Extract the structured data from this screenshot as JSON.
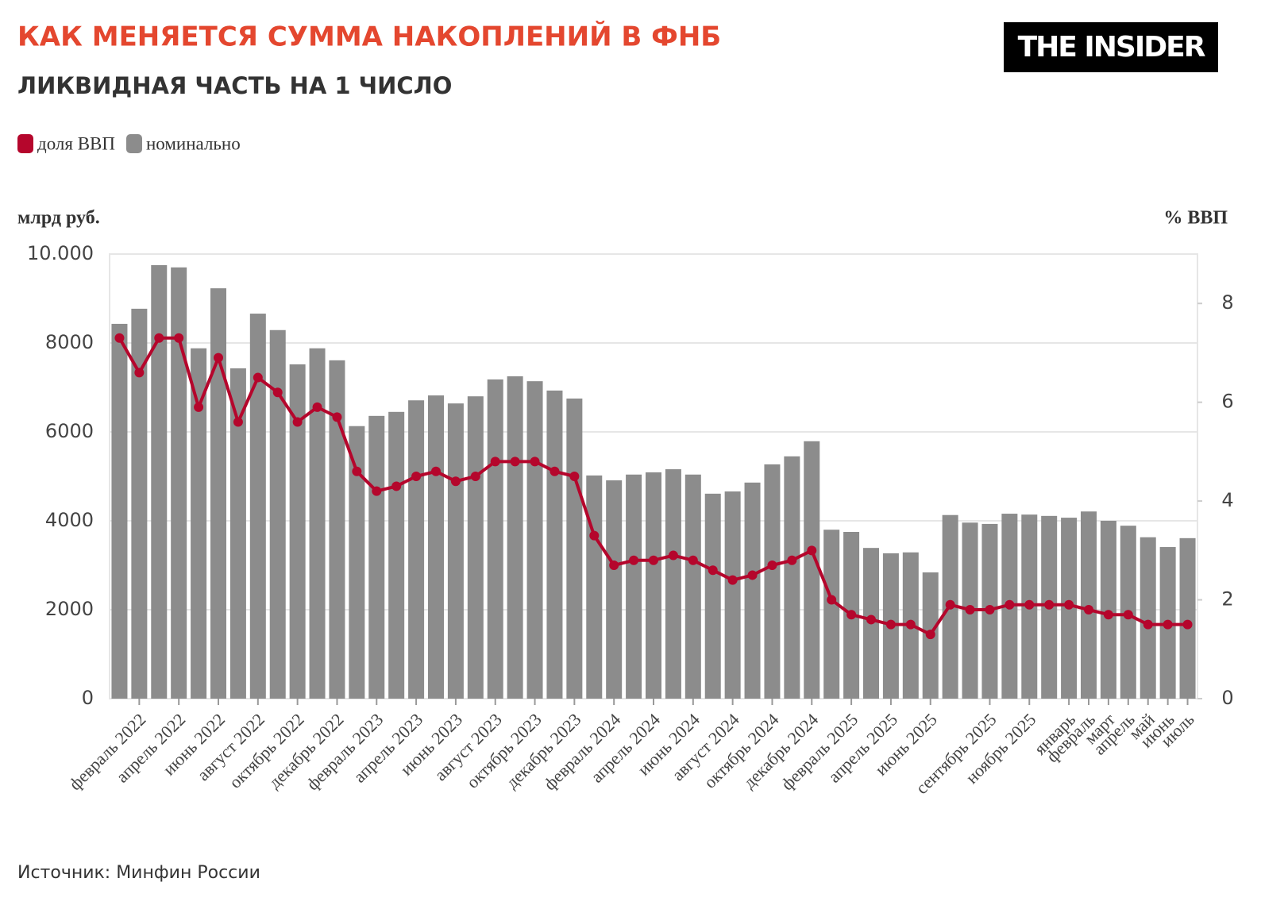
{
  "chart_data": {
    "type": "bar",
    "title": "КАК МЕНЯЕТСЯ СУММА НАКОПЛЕНИЙ В ФНБ",
    "subtitle": "ЛИКВИДНАЯ ЧАСТЬ НА 1 ЧИСЛО",
    "logo": "THE INSIDER",
    "y_label": "млрд руб.",
    "y2_label": "% ВВП",
    "source": "Источник: Минфин России",
    "categories": [
      null,
      "февраль 2022",
      null,
      "апрель 2022",
      null,
      "июнь 2022",
      null,
      "август 2022",
      null,
      "октябрь 2022",
      null,
      "декабрь 2022",
      null,
      "февраль 2023",
      null,
      "апрель 2023",
      null,
      "июнь 2023",
      null,
      "август 2023",
      null,
      "октябрь 2023",
      null,
      "декабрь 2023",
      null,
      "февраль 2024",
      null,
      "апрель 2024",
      null,
      "июнь 2024",
      null,
      "август 2024",
      null,
      "октябрь 2024",
      null,
      "декабрь 2024",
      null,
      "февраль 2025",
      null,
      "апрель 2025",
      null,
      "июнь 2025",
      null,
      null,
      "сентябрь 2025",
      null,
      "ноябрь 2025",
      null,
      "январь",
      "февраль",
      "март",
      "апрель",
      "май",
      "июнь",
      "июль"
    ],
    "series": [
      {
        "name": "доля ВВП",
        "type": "line",
        "axis": "y2",
        "color": "#b5062c",
        "values": [
          7.3,
          6.6,
          7.3,
          7.3,
          5.9,
          6.9,
          5.6,
          6.5,
          6.2,
          5.6,
          5.9,
          5.7,
          4.6,
          4.2,
          4.3,
          4.5,
          4.6,
          4.4,
          4.5,
          4.8,
          4.8,
          4.8,
          4.6,
          4.5,
          3.3,
          2.7,
          2.8,
          2.8,
          2.9,
          2.8,
          2.6,
          2.4,
          2.5,
          2.7,
          2.8,
          3.0,
          2.0,
          1.7,
          1.6,
          1.5,
          1.5,
          1.3,
          1.9,
          1.8,
          1.8,
          1.9,
          1.9,
          1.9,
          1.9,
          1.8,
          1.7,
          1.7,
          1.5,
          1.5,
          1.5
        ]
      },
      {
        "name": "номинально",
        "type": "bar",
        "axis": "y",
        "color": "#8c8c8c",
        "values": [
          8430,
          8770,
          9750,
          9700,
          7880,
          9230,
          7430,
          8660,
          8290,
          7520,
          7880,
          7610,
          6130,
          6360,
          6450,
          6710,
          6820,
          6640,
          6800,
          7180,
          7250,
          7140,
          6930,
          6750,
          5020,
          4910,
          5040,
          5090,
          5160,
          5040,
          4610,
          4660,
          4860,
          5270,
          5450,
          5790,
          3800,
          3750,
          3390,
          3270,
          3290,
          2840,
          4130,
          3960,
          3930,
          4160,
          4140,
          4110,
          4070,
          4210,
          4000,
          3890,
          3630,
          3410,
          3610
        ]
      }
    ],
    "ylim": [
      0,
      10000
    ],
    "yticks": [
      0,
      2000,
      4000,
      6000,
      8000,
      {
        "value": 10000,
        "label": "10.000"
      }
    ],
    "y2lim": [
      0,
      9
    ],
    "y2ticks": [
      0,
      2,
      4,
      6,
      8
    ],
    "grid": true
  }
}
